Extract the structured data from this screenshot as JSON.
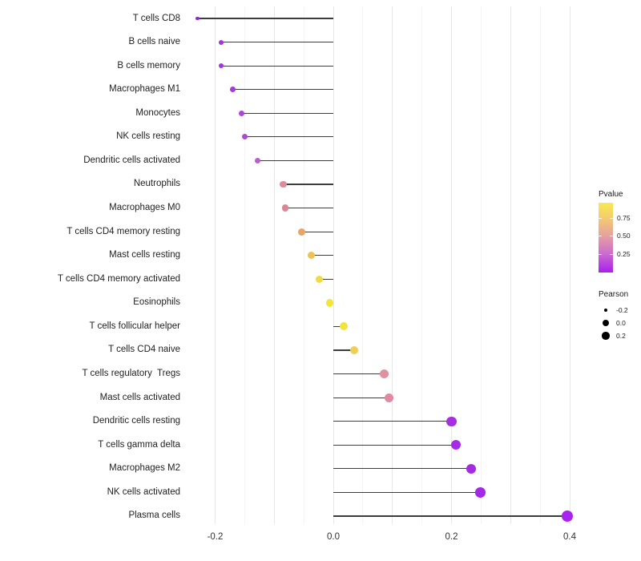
{
  "chart_data": {
    "type": "lollipop",
    "title": "",
    "xlabel": "",
    "ylabel": "",
    "x_tick_labels": [
      "-0.2",
      "0.0",
      "0.2",
      "0.4"
    ],
    "x_tick_values": [
      -0.2,
      0.0,
      0.2,
      0.4
    ],
    "xlim": [
      -0.26,
      0.45
    ],
    "grid": "vertical-only",
    "categories": [
      "T cells CD8",
      "B cells naive",
      "B cells memory",
      "Macrophages M1",
      "Monocytes",
      "NK cells resting",
      "Dendritic cells activated",
      "Neutrophils",
      "Macrophages M0",
      "T cells CD4 memory resting",
      "Mast cells resting",
      "T cells CD4 memory activated",
      "Eosinophils",
      "T cells follicular helper",
      "T cells CD4 naive",
      "T cells regulatory  Tregs",
      "Mast cells activated",
      "Dendritic cells resting",
      "T cells gamma delta",
      "Macrophages M2",
      "NK cells activated",
      "Plasma cells"
    ],
    "series": [
      {
        "name": "Pearson correlation",
        "values": [
          -0.23,
          -0.19,
          -0.19,
          -0.17,
          -0.155,
          -0.15,
          -0.128,
          -0.085,
          -0.081,
          -0.053,
          -0.037,
          -0.024,
          -0.006,
          0.017,
          0.035,
          0.086,
          0.094,
          0.2,
          0.207,
          0.233,
          0.249,
          0.396
        ],
        "point_colors": [
          "#8F2BCE",
          "#A136DB",
          "#A136DB",
          "#A53BD8",
          "#AC46D4",
          "#AE49D3",
          "#B95ECC",
          "#DE8C97",
          "#DB8694",
          "#E7A566",
          "#EAC353",
          "#F0DB45",
          "#F3E63A",
          "#F4E23E",
          "#EFCF55",
          "#E0909E",
          "#E189A0",
          "#A72FE2",
          "#A52CE4",
          "#A42BE1",
          "#A328E8",
          "#A823EE"
        ]
      }
    ],
    "legend": {
      "position": "right",
      "pvalue": {
        "title": "Pvalue",
        "ticks": [
          "0.75",
          "0.50",
          "0.25"
        ],
        "gradient_top_color": "#F9E951",
        "gradient_mid_color": "#E7A0A0",
        "gradient_bottom_color": "#A81FF0"
      },
      "pearson": {
        "title": "Pearson",
        "items": [
          {
            "label": "-0.2",
            "d": 4.6
          },
          {
            "label": "0.0",
            "d": 8
          },
          {
            "label": "0.2",
            "d": 9.4
          }
        ]
      }
    }
  }
}
